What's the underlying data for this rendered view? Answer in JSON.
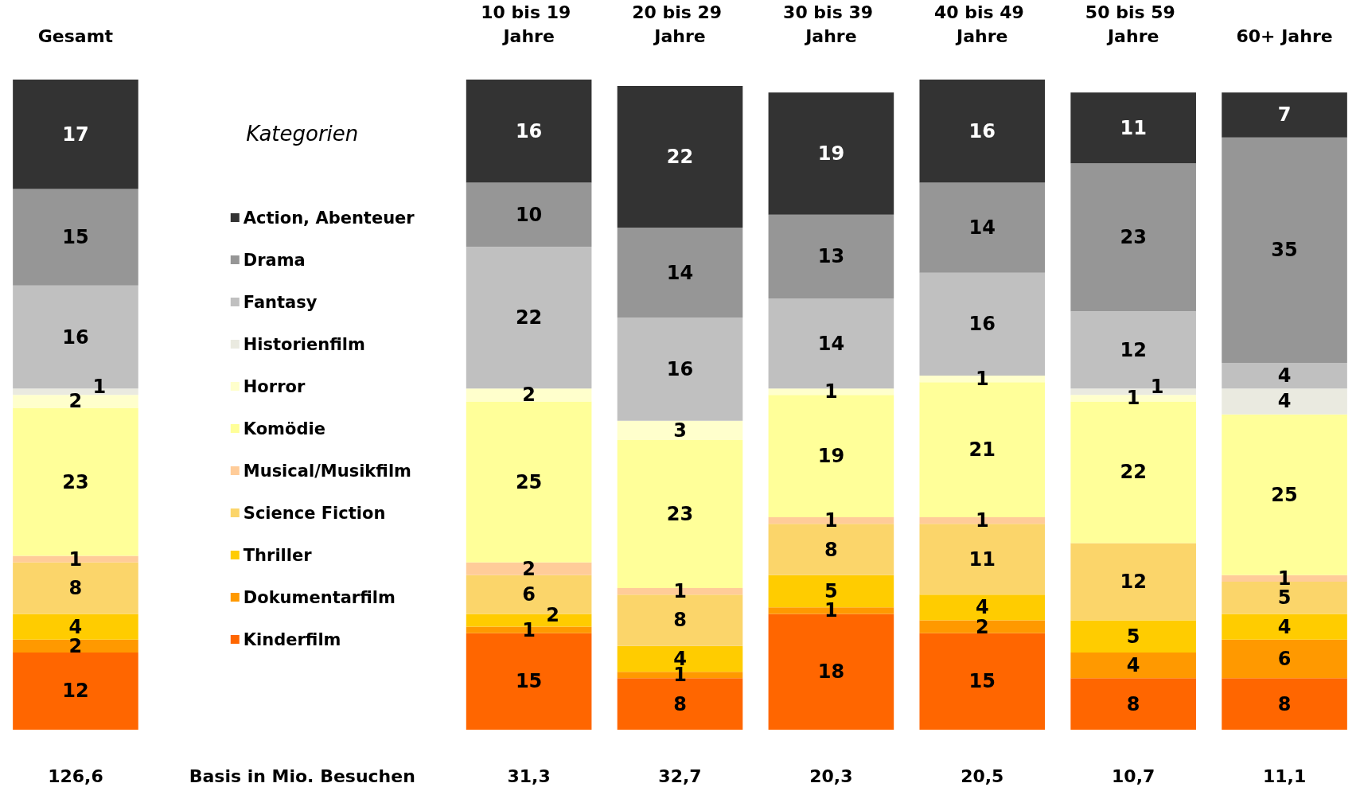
{
  "chart_data": {
    "type": "bar",
    "stacked": true,
    "data_labels": true,
    "legend": "left",
    "legend_title": "Kategorien",
    "categories": [
      "Gesamt",
      null,
      null,
      "10 bis 19 Jahre",
      "20 bis 29 Jahre",
      "30 bis 39 Jahre",
      "40 bis 49 Jahre",
      "50 bis 59 Jahre",
      "60+ Jahre"
    ],
    "series": [
      {
        "name": "Kinderfilm",
        "color": "#ff6600",
        "values": [
          12,
          null,
          null,
          15,
          8,
          18,
          15,
          8,
          8
        ]
      },
      {
        "name": "Dokumentarfilm",
        "color": "#ff9900",
        "values": [
          2,
          null,
          null,
          1,
          1,
          1,
          2,
          4,
          6
        ]
      },
      {
        "name": "Thriller",
        "color": "#ffcc00",
        "values": [
          4,
          null,
          null,
          2,
          4,
          5,
          4,
          5,
          4
        ]
      },
      {
        "name": "Science Fiction",
        "color": "#fbd56a",
        "values": [
          8,
          null,
          null,
          6,
          8,
          8,
          11,
          12,
          5
        ]
      },
      {
        "name": "Musical/Musikfilm",
        "color": "#ffcc99",
        "values": [
          1,
          null,
          null,
          2,
          1,
          1,
          1,
          null,
          1
        ]
      },
      {
        "name": "Komödie",
        "color": "#ffff99",
        "values": [
          23,
          null,
          null,
          25,
          23,
          19,
          21,
          22,
          25
        ]
      },
      {
        "name": "Horror",
        "color": "#ffffcc",
        "values": [
          2,
          null,
          null,
          2,
          3,
          1,
          1,
          1,
          null
        ]
      },
      {
        "name": "Historienfilm",
        "color": "#eaeae0",
        "values": [
          1,
          null,
          null,
          null,
          null,
          null,
          null,
          1,
          4
        ]
      },
      {
        "name": "Fantasy",
        "color": "#c0c0c0",
        "values": [
          16,
          null,
          null,
          22,
          16,
          14,
          16,
          12,
          4
        ]
      },
      {
        "name": "Drama",
        "color": "#969696",
        "values": [
          15,
          null,
          null,
          10,
          14,
          13,
          14,
          23,
          35
        ]
      },
      {
        "name": "Action, Abenteuer",
        "color": "#333333",
        "values": [
          17,
          null,
          null,
          16,
          22,
          19,
          16,
          11,
          7
        ]
      }
    ],
    "annotations": [
      "126,6",
      "Basis in Mio. Besuchen",
      "31,3",
      "32,7",
      "20,3",
      "20,5",
      "10,7",
      "11,1"
    ]
  }
}
